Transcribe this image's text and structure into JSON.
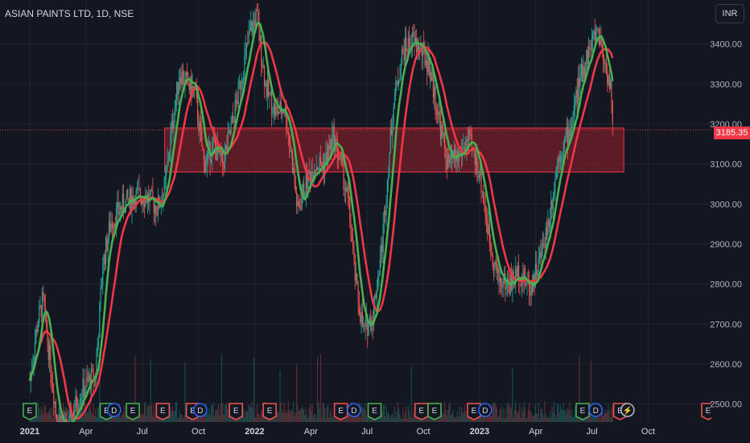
{
  "header": {
    "symbol_line": "ASIAN PAINTS LTD, 1D, NSE"
  },
  "currency_button": "INR",
  "colors": {
    "background": "#131722",
    "grid": "#1f2430",
    "axis_text": "#b2b5be",
    "up": "#26a69a",
    "down": "#ef5350",
    "ma_fast": "#4caf50",
    "ma_slow": "#f23645",
    "zone_fill": "#7a1f2b",
    "zone_border": "#f23645"
  },
  "chart_data": {
    "type": "candlestick",
    "symbol": "ASIAN PAINTS LTD",
    "interval": "1D",
    "exchange": "NSE",
    "currency": "INR",
    "last_price": "3185.35",
    "y_ticks": [
      2500,
      2600,
      2700,
      2800,
      2900,
      3000,
      3100,
      3200,
      3300,
      3400
    ],
    "y_tick_labels": [
      "2500.00",
      "2600.00",
      "2700.00",
      "2800.00",
      "2900.00",
      "3000.00",
      "3100.00",
      "3200.00",
      "3300.00",
      "3400.00"
    ],
    "ylim": [
      2455,
      3510
    ],
    "x_ticks": [
      {
        "label": "2021",
        "t": 0
      },
      {
        "label": "Apr",
        "t": 3
      },
      {
        "label": "Jul",
        "t": 6
      },
      {
        "label": "Oct",
        "t": 9
      },
      {
        "label": "2022",
        "t": 12
      },
      {
        "label": "Apr",
        "t": 15
      },
      {
        "label": "Jul",
        "t": 18
      },
      {
        "label": "Oct",
        "t": 21
      },
      {
        "label": "2023",
        "t": 24
      },
      {
        "label": "Apr",
        "t": 27
      },
      {
        "label": "Jul",
        "t": 30
      },
      {
        "label": "Oct",
        "t": 33
      }
    ],
    "price_path": [
      {
        "t": 0.0,
        "p": 2560
      },
      {
        "t": 0.4,
        "p": 2700
      },
      {
        "t": 0.7,
        "p": 2760
      },
      {
        "t": 1.0,
        "p": 2640
      },
      {
        "t": 1.4,
        "p": 2480
      },
      {
        "t": 2.0,
        "p": 2430
      },
      {
        "t": 2.6,
        "p": 2520
      },
      {
        "t": 3.2,
        "p": 2560
      },
      {
        "t": 3.5,
        "p": 2570
      },
      {
        "t": 3.9,
        "p": 2850
      },
      {
        "t": 4.3,
        "p": 2950
      },
      {
        "t": 5.0,
        "p": 3000
      },
      {
        "t": 5.6,
        "p": 3020
      },
      {
        "t": 6.2,
        "p": 3020
      },
      {
        "t": 6.8,
        "p": 2990
      },
      {
        "t": 7.2,
        "p": 3040
      },
      {
        "t": 7.6,
        "p": 3200
      },
      {
        "t": 8.0,
        "p": 3330
      },
      {
        "t": 8.4,
        "p": 3300
      },
      {
        "t": 8.8,
        "p": 3280
      },
      {
        "t": 9.3,
        "p": 3100
      },
      {
        "t": 9.8,
        "p": 3150
      },
      {
        "t": 10.3,
        "p": 3100
      },
      {
        "t": 10.8,
        "p": 3200
      },
      {
        "t": 11.3,
        "p": 3320
      },
      {
        "t": 11.8,
        "p": 3440
      },
      {
        "t": 12.1,
        "p": 3470
      },
      {
        "t": 12.6,
        "p": 3290
      },
      {
        "t": 13.1,
        "p": 3230
      },
      {
        "t": 13.6,
        "p": 3240
      },
      {
        "t": 14.0,
        "p": 3110
      },
      {
        "t": 14.3,
        "p": 2980
      },
      {
        "t": 14.7,
        "p": 3050
      },
      {
        "t": 15.2,
        "p": 3100
      },
      {
        "t": 15.7,
        "p": 3100
      },
      {
        "t": 16.2,
        "p": 3170
      },
      {
        "t": 16.6,
        "p": 3100
      },
      {
        "t": 17.0,
        "p": 3000
      },
      {
        "t": 17.4,
        "p": 2800
      },
      {
        "t": 17.8,
        "p": 2680
      },
      {
        "t": 18.3,
        "p": 2720
      },
      {
        "t": 18.8,
        "p": 2900
      },
      {
        "t": 19.4,
        "p": 3250
      },
      {
        "t": 19.9,
        "p": 3380
      },
      {
        "t": 20.4,
        "p": 3410
      },
      {
        "t": 20.9,
        "p": 3380
      },
      {
        "t": 21.3,
        "p": 3350
      },
      {
        "t": 21.8,
        "p": 3220
      },
      {
        "t": 22.3,
        "p": 3100
      },
      {
        "t": 22.9,
        "p": 3120
      },
      {
        "t": 23.4,
        "p": 3160
      },
      {
        "t": 24.0,
        "p": 3080
      },
      {
        "t": 24.5,
        "p": 2920
      },
      {
        "t": 25.0,
        "p": 2810
      },
      {
        "t": 25.6,
        "p": 2800
      },
      {
        "t": 26.1,
        "p": 2830
      },
      {
        "t": 26.7,
        "p": 2790
      },
      {
        "t": 27.2,
        "p": 2860
      },
      {
        "t": 27.7,
        "p": 2960
      },
      {
        "t": 28.2,
        "p": 3120
      },
      {
        "t": 28.8,
        "p": 3180
      },
      {
        "t": 29.3,
        "p": 3300
      },
      {
        "t": 29.8,
        "p": 3380
      },
      {
        "t": 30.3,
        "p": 3440
      },
      {
        "t": 30.7,
        "p": 3350
      },
      {
        "t": 31.0,
        "p": 3290
      },
      {
        "t": 31.1,
        "p": 3185
      }
    ],
    "zone": {
      "t_start": 7.2,
      "t_end": 31.7,
      "price_top": 3190,
      "price_bottom": 3080
    },
    "event_markers": [
      {
        "t": 0.0,
        "label": "E",
        "kind": "earnings"
      },
      {
        "t": 4.1,
        "label": "E",
        "kind": "earnings"
      },
      {
        "t": 4.5,
        "label": "D",
        "kind": "dividend"
      },
      {
        "t": 5.5,
        "label": "E",
        "kind": "earnings"
      },
      {
        "t": 7.1,
        "label": "E",
        "kind": "earnings"
      },
      {
        "t": 8.7,
        "label": "E",
        "kind": "earnings"
      },
      {
        "t": 9.1,
        "label": "D",
        "kind": "dividend"
      },
      {
        "t": 11.0,
        "label": "E",
        "kind": "earnings"
      },
      {
        "t": 12.8,
        "label": "E",
        "kind": "earnings"
      },
      {
        "t": 16.6,
        "label": "E",
        "kind": "earnings"
      },
      {
        "t": 17.3,
        "label": "D",
        "kind": "dividend"
      },
      {
        "t": 18.4,
        "label": "E",
        "kind": "earnings"
      },
      {
        "t": 20.9,
        "label": "E",
        "kind": "earnings"
      },
      {
        "t": 21.6,
        "label": "E",
        "kind": "earnings"
      },
      {
        "t": 23.7,
        "label": "E",
        "kind": "earnings"
      },
      {
        "t": 24.3,
        "label": "D",
        "kind": "dividend"
      },
      {
        "t": 29.5,
        "label": "E",
        "kind": "earnings"
      },
      {
        "t": 30.2,
        "label": "D",
        "kind": "dividend"
      },
      {
        "t": 31.5,
        "label": "E",
        "kind": "earnings"
      },
      {
        "t": 31.9,
        "label": "⚡",
        "kind": "split"
      },
      {
        "t": 36.2,
        "label": "E",
        "kind": "earnings"
      }
    ],
    "grid": true
  }
}
